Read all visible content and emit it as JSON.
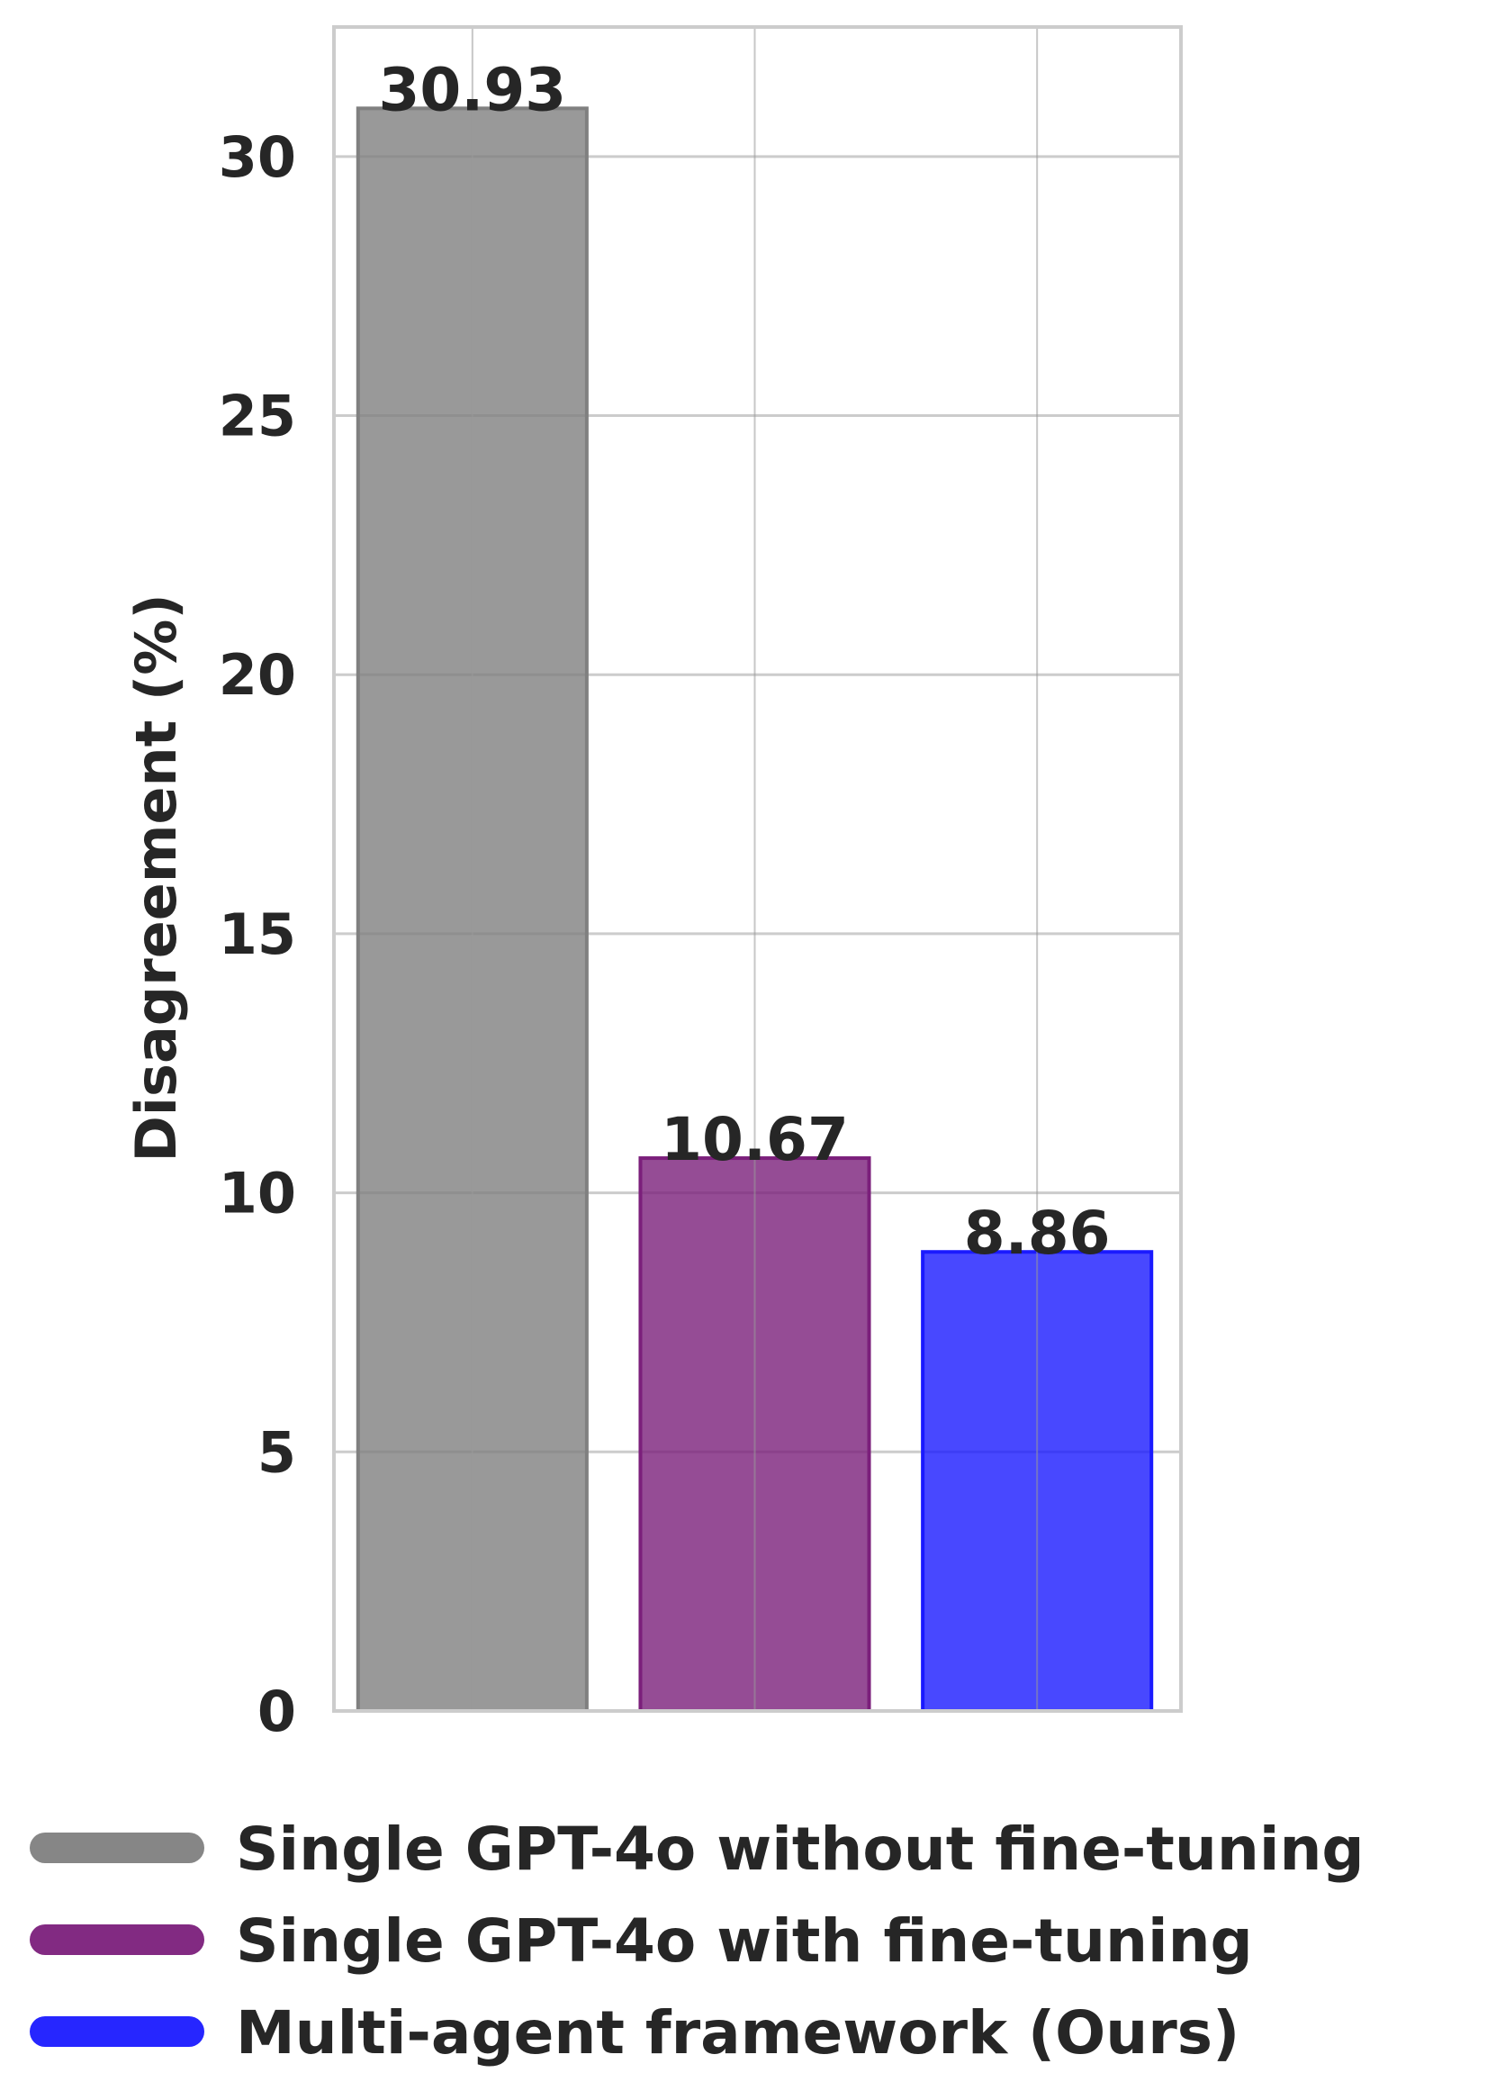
{
  "chart_data": {
    "type": "bar",
    "categories": [
      "Single GPT-4o without fine-tuning",
      "Single GPT-4o with fine-tuning",
      "Multi-agent framework (Ours)"
    ],
    "values": [
      30.93,
      10.67,
      8.86
    ],
    "value_labels": [
      "30.93",
      "10.67",
      "8.86"
    ],
    "colors": [
      "#808080",
      "#7b1f7b",
      "#1a1aff"
    ],
    "ylabel": "Disagreement (%)",
    "xlabel": "",
    "ylim": [
      0,
      32.5
    ],
    "yticks": [
      0,
      5,
      10,
      15,
      20,
      25,
      30
    ],
    "grid": true,
    "legend": {
      "position": "bottom",
      "entries": [
        "Single GPT-4o without fine-tuning",
        "Single GPT-4o with fine-tuning",
        "Multi-agent framework (Ours)"
      ]
    }
  }
}
